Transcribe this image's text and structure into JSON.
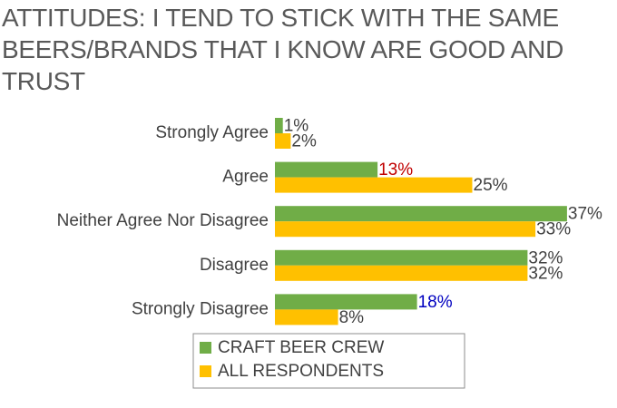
{
  "chart_data": {
    "type": "bar",
    "orientation": "horizontal",
    "title": "ATTITUDES: I TEND TO STICK WITH THE SAME BEERS/BRANDS THAT I KNOW ARE GOOD AND TRUST",
    "categories": [
      "Strongly Agree",
      "Agree",
      "Neither Agree Nor Disagree",
      "Disagree",
      "Strongly Disagree"
    ],
    "series": [
      {
        "name": "CRAFT BEER CREW",
        "color": "#70ad47",
        "values": [
          1,
          13,
          37,
          32,
          18
        ],
        "value_labels": [
          "1%",
          "13%",
          "37%",
          "32%",
          "18%"
        ],
        "value_label_colors": [
          "#404040",
          "#c00000",
          "#404040",
          "#404040",
          "#0000c0"
        ]
      },
      {
        "name": "ALL RESPONDENTS",
        "color": "#ffc000",
        "values": [
          2,
          25,
          33,
          32,
          8
        ],
        "value_labels": [
          "2%",
          "25%",
          "33%",
          "32%",
          "8%"
        ],
        "value_label_colors": [
          "#404040",
          "#404040",
          "#404040",
          "#404040",
          "#404040"
        ]
      }
    ],
    "legend": "bottom"
  }
}
